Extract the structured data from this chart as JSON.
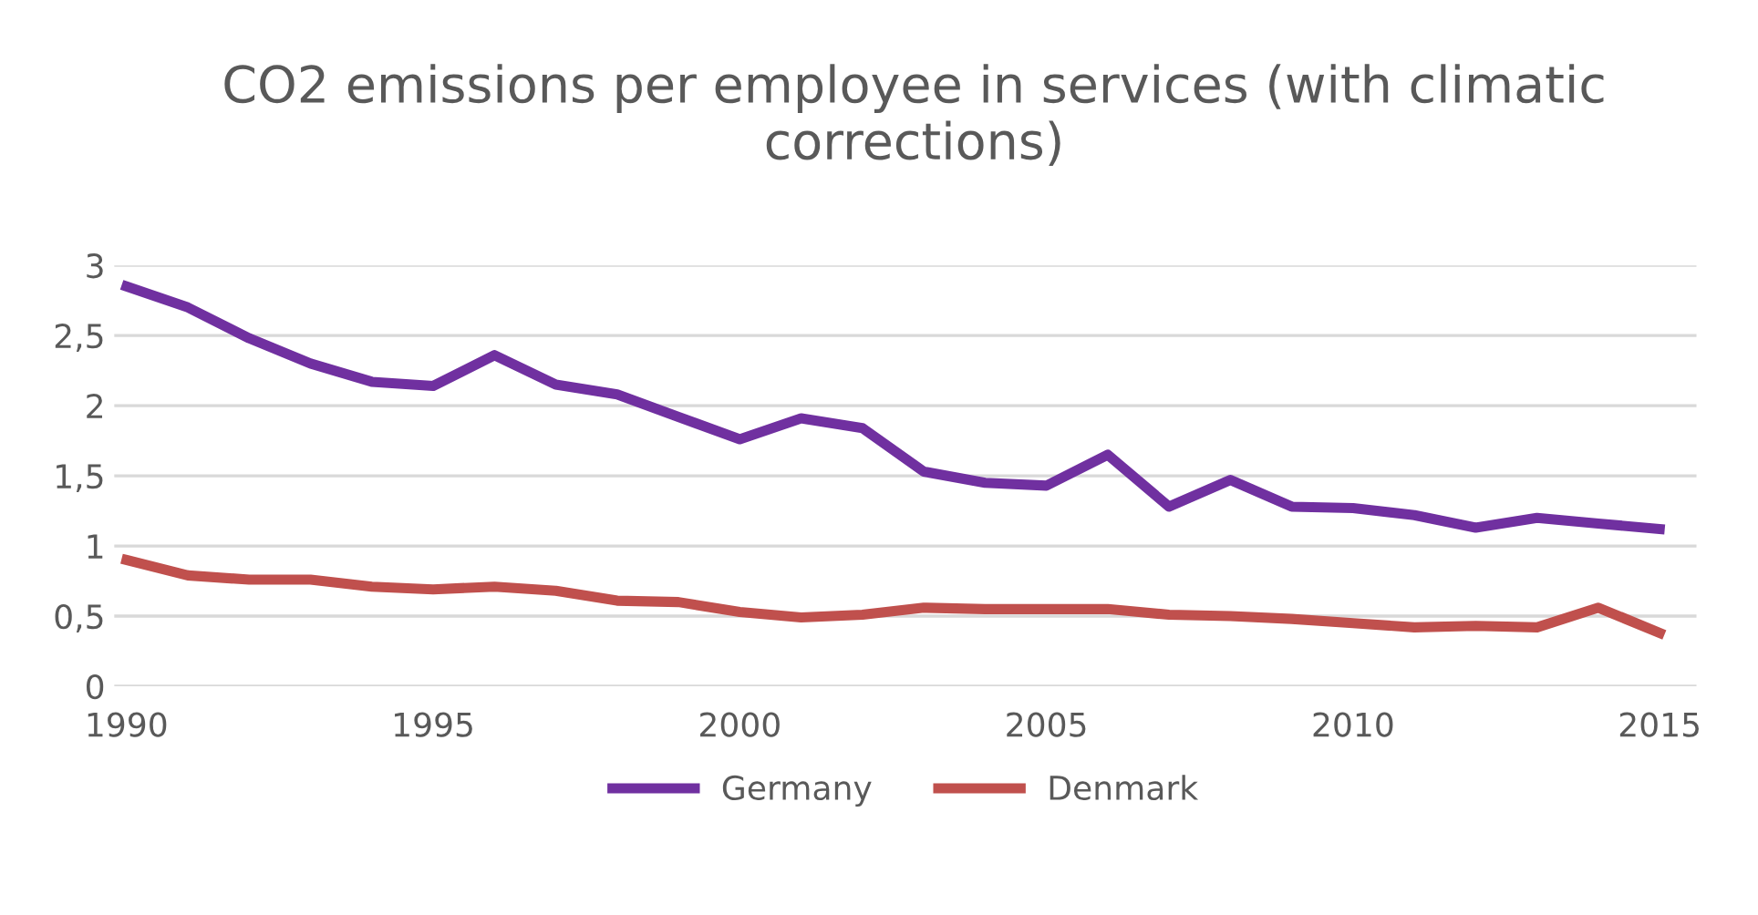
{
  "chart_data": {
    "type": "line",
    "title": "CO2 emissions per employee in services (with climatic corrections)",
    "x": [
      1990,
      1991,
      1992,
      1993,
      1994,
      1995,
      1996,
      1997,
      1998,
      1999,
      2000,
      2001,
      2002,
      2003,
      2004,
      2005,
      2006,
      2007,
      2008,
      2009,
      2010,
      2011,
      2012,
      2013,
      2014,
      2015
    ],
    "series": [
      {
        "name": "Germany",
        "color": "#7030a0",
        "values": [
          2.85,
          2.7,
          2.48,
          2.3,
          2.17,
          2.14,
          2.36,
          2.15,
          2.08,
          1.92,
          1.76,
          1.91,
          1.84,
          1.53,
          1.45,
          1.43,
          1.65,
          1.28,
          1.47,
          1.28,
          1.27,
          1.22,
          1.13,
          1.2,
          1.16,
          1.12
        ]
      },
      {
        "name": "Denmark",
        "color": "#c0504d",
        "values": [
          0.9,
          0.79,
          0.76,
          0.76,
          0.71,
          0.69,
          0.71,
          0.68,
          0.61,
          0.6,
          0.53,
          0.49,
          0.51,
          0.56,
          0.55,
          0.55,
          0.55,
          0.51,
          0.5,
          0.48,
          0.45,
          0.42,
          0.43,
          0.42,
          0.56,
          0.38
        ]
      }
    ],
    "xlim": [
      1989.8,
      2015.6
    ],
    "xticks": [
      1990,
      1995,
      2000,
      2005,
      2010,
      2015
    ],
    "ylim": [
      0,
      3
    ],
    "yticks": [
      0,
      {
        "value": 0.5,
        "label": "0,5"
      },
      1,
      {
        "value": 1.5,
        "label": "1,5"
      },
      2,
      {
        "value": 2.5,
        "label": "2,5"
      },
      3
    ],
    "grid": "y",
    "legend": "bottom",
    "marker": "none",
    "line_style": "solid"
  }
}
